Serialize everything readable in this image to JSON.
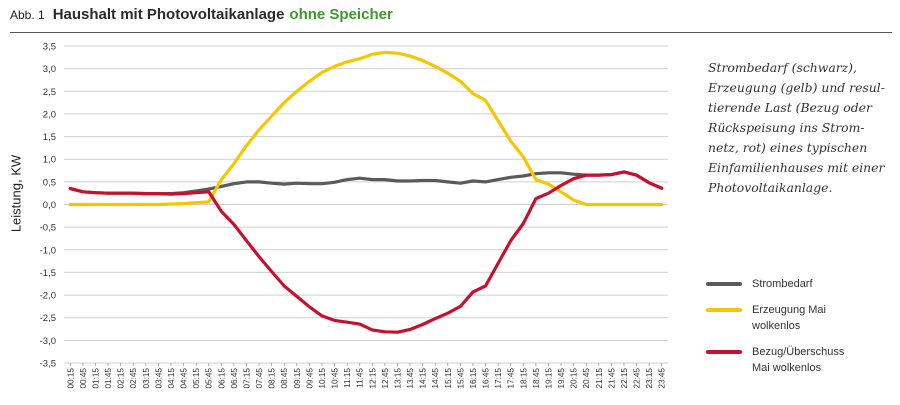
{
  "header": {
    "fig_label": "Abb. 1",
    "title_main": "Haushalt mit Photovoltaikanlage",
    "title_highlight": "ohne Speicher"
  },
  "caption": {
    "lines": [
      "Strombedarf (schwarz),",
      "Erzeugung (gelb) und resul-",
      "tierende Last (Bezug oder",
      "Rückspeisung ins Strom-",
      "netz, rot) eines typischen",
      "Einfamilienhauses mit einer",
      "Photovoltaikanlage."
    ]
  },
  "legend": {
    "items": [
      {
        "lines": [
          "Strombedarf"
        ]
      },
      {
        "lines": [
          "Erzeugung Mai",
          "wolkenlos"
        ]
      },
      {
        "lines": [
          "Bezug/Überschuss",
          "Mai wolkenlos"
        ]
      }
    ]
  },
  "colors": {
    "accent_green": "#3a9a2c",
    "demand": "#5a5a5a",
    "generation": "#f7c600",
    "net": "#c8102e",
    "grid": "#cfcfcf"
  },
  "chart_data": {
    "type": "line",
    "ylabel": "Leistung, KW",
    "xlabel": "",
    "ylim": [
      -3.5,
      3.5
    ],
    "yticks": [
      "3,5",
      "3,0",
      "2,5",
      "2,0",
      "1,5",
      "1,0",
      "0,5",
      "0,0",
      "-0,5",
      "-1,0",
      "-1,5",
      "-2,0",
      "-2,5",
      "-3,0",
      "-3,5"
    ],
    "grid": true,
    "legend_position": "right",
    "categories": [
      "00:15",
      "00:45",
      "01:15",
      "01:45",
      "02:15",
      "02:45",
      "03:15",
      "03:45",
      "04:15",
      "04:45",
      "05:15",
      "05:45",
      "06:15",
      "06:45",
      "07:15",
      "07:45",
      "08:15",
      "08:45",
      "09:15",
      "09:45",
      "10:15",
      "10:45",
      "11:15",
      "11:45",
      "12:15",
      "12:45",
      "13:15",
      "13:45",
      "14:15",
      "14:45",
      "15:15",
      "15:45",
      "16:15",
      "16:45",
      "17:15",
      "17:45",
      "18:15",
      "18:45",
      "19:15",
      "19:45",
      "20:15",
      "20:45",
      "21:15",
      "21:45",
      "22:15",
      "22:45",
      "23:15",
      "23:45"
    ],
    "series": [
      {
        "name": "Strombedarf",
        "values": [
          0.35,
          0.28,
          0.26,
          0.25,
          0.25,
          0.25,
          0.24,
          0.24,
          0.24,
          0.26,
          0.3,
          0.34,
          0.4,
          0.46,
          0.5,
          0.5,
          0.47,
          0.45,
          0.47,
          0.46,
          0.46,
          0.49,
          0.55,
          0.58,
          0.55,
          0.55,
          0.52,
          0.52,
          0.53,
          0.53,
          0.5,
          0.47,
          0.52,
          0.5,
          0.55,
          0.6,
          0.63,
          0.68,
          0.7,
          0.7,
          0.67,
          0.65,
          0.65,
          0.66,
          0.72,
          0.65,
          0.48,
          0.36
        ]
      },
      {
        "name": "Erzeugung Mai wolkenlos",
        "values": [
          0.0,
          0.0,
          0.0,
          0.0,
          0.0,
          0.0,
          0.0,
          0.0,
          0.01,
          0.02,
          0.04,
          0.06,
          0.55,
          0.9,
          1.3,
          1.65,
          1.95,
          2.25,
          2.5,
          2.72,
          2.92,
          3.05,
          3.15,
          3.22,
          3.32,
          3.36,
          3.34,
          3.28,
          3.18,
          3.05,
          2.9,
          2.72,
          2.45,
          2.3,
          1.85,
          1.4,
          1.05,
          0.55,
          0.45,
          0.28,
          0.1,
          0.0,
          0.0,
          0.0,
          0.0,
          0.0,
          0.0,
          0.0
        ]
      },
      {
        "name": "Bezug/Überschuss Mai wolkenlos",
        "values": [
          0.35,
          0.28,
          0.26,
          0.25,
          0.25,
          0.25,
          0.24,
          0.24,
          0.23,
          0.24,
          0.26,
          0.28,
          -0.15,
          -0.44,
          -0.8,
          -1.15,
          -1.48,
          -1.8,
          -2.03,
          -2.26,
          -2.46,
          -2.56,
          -2.6,
          -2.64,
          -2.77,
          -2.81,
          -2.82,
          -2.76,
          -2.65,
          -2.52,
          -2.4,
          -2.25,
          -1.93,
          -1.8,
          -1.3,
          -0.8,
          -0.42,
          0.13,
          0.25,
          0.42,
          0.57,
          0.65,
          0.65,
          0.66,
          0.72,
          0.65,
          0.48,
          0.36
        ]
      }
    ]
  }
}
